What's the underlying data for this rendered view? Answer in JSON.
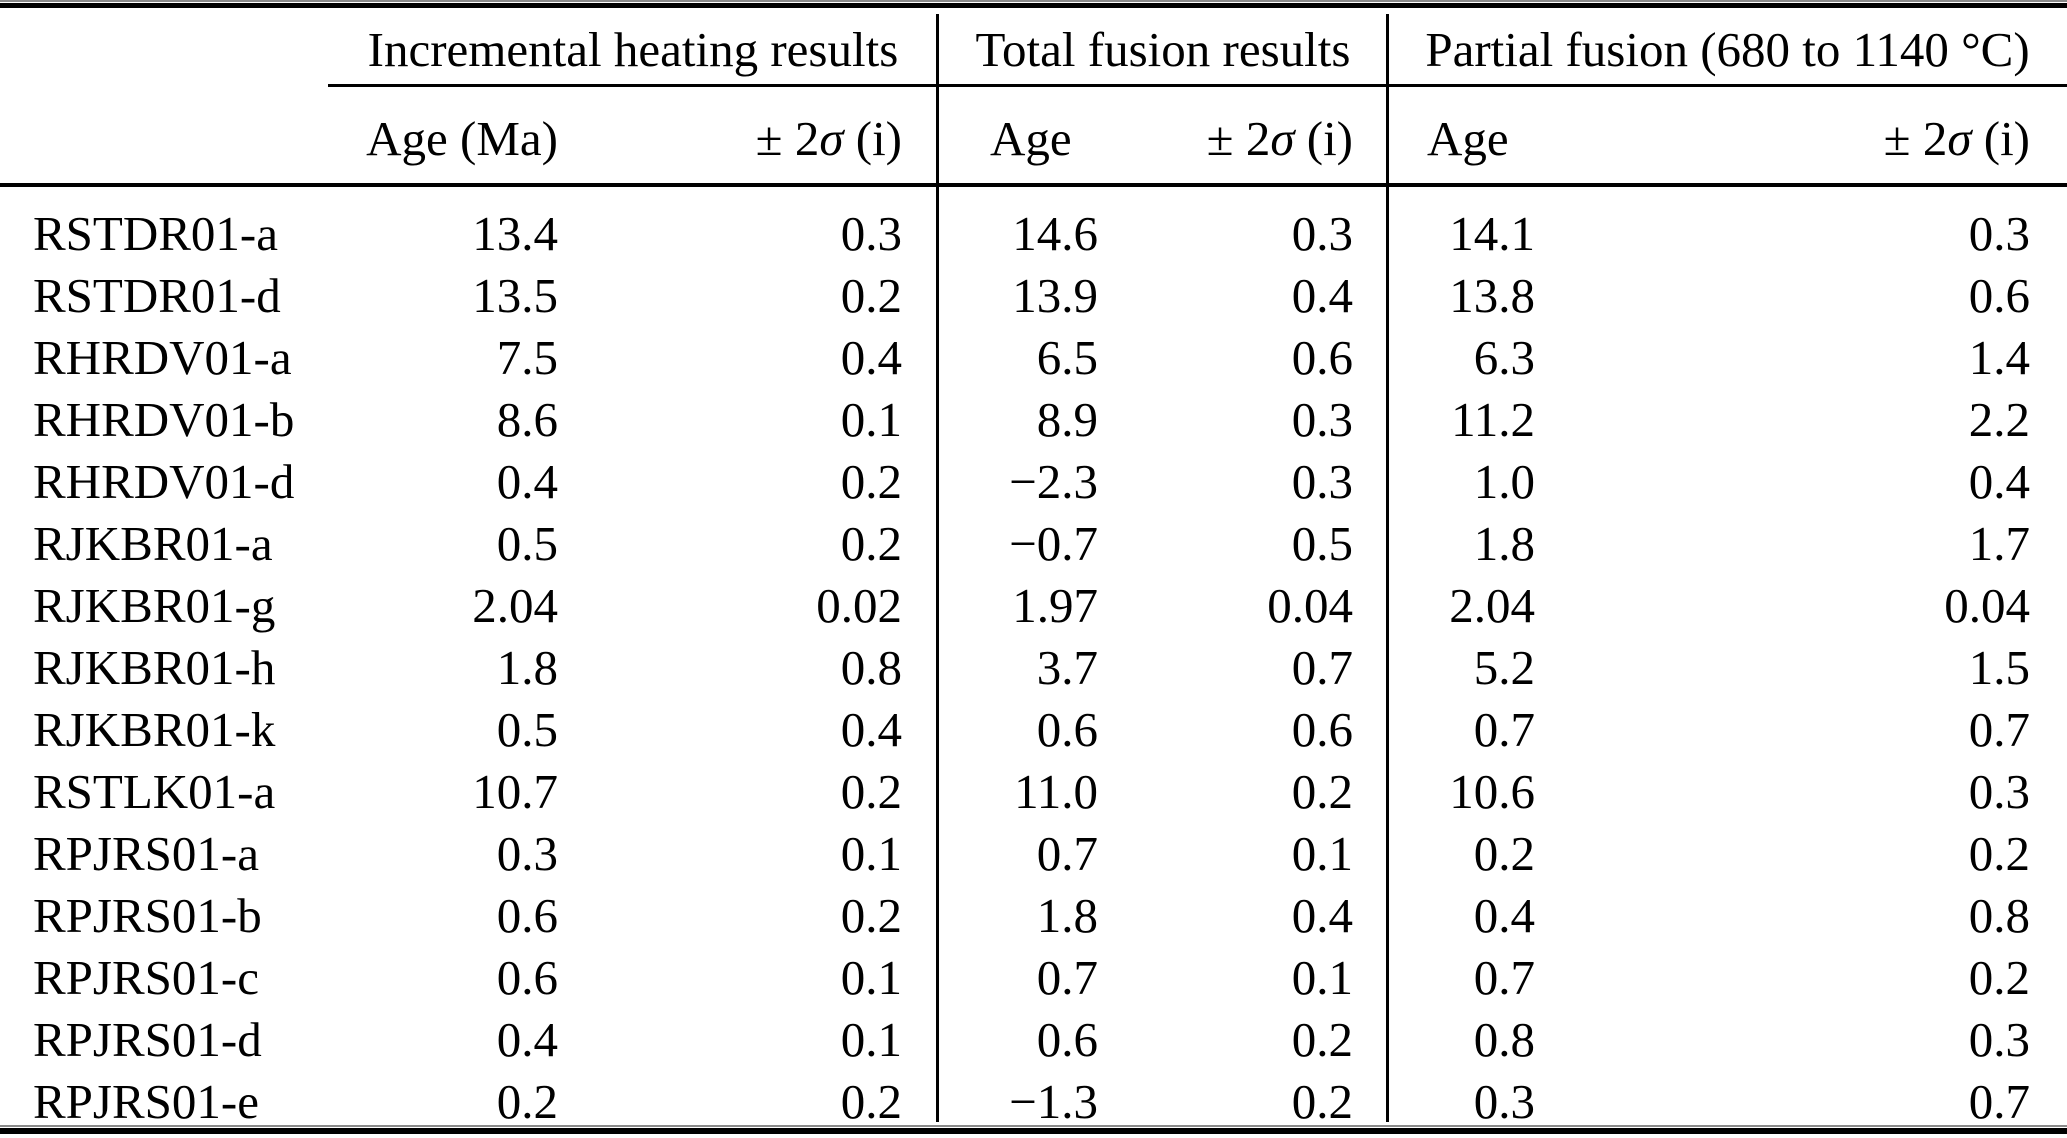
{
  "colors": {
    "text": "#000000",
    "background": "#ffffff",
    "rule": "#000000"
  },
  "header": {
    "group_labels": [
      "Incremental heating results",
      "Total fusion results",
      "Partial fusion (680 to 1140 °C)"
    ],
    "age_headers": [
      "Age (Ma)",
      "Age",
      "Age"
    ],
    "sigma_header": {
      "prefix": "± 2",
      "sigma": "σ",
      "suffix": " (i)"
    }
  },
  "rows": [
    {
      "sample": "RSTDR01-a",
      "values": [
        "13.4",
        "0.3",
        "14.6",
        "0.3",
        "14.1",
        "0.3"
      ]
    },
    {
      "sample": "RSTDR01-d",
      "values": [
        "13.5",
        "0.2",
        "13.9",
        "0.4",
        "13.8",
        "0.6"
      ]
    },
    {
      "sample": "RHRDV01-a",
      "values": [
        "7.5",
        "0.4",
        "6.5",
        "0.6",
        "6.3",
        "1.4"
      ]
    },
    {
      "sample": "RHRDV01-b",
      "values": [
        "8.6",
        "0.1",
        "8.9",
        "0.3",
        "11.2",
        "2.2"
      ]
    },
    {
      "sample": "RHRDV01-d",
      "values": [
        "0.4",
        "0.2",
        "−2.3",
        "0.3",
        "1.0",
        "0.4"
      ]
    },
    {
      "sample": "RJKBR01-a",
      "values": [
        "0.5",
        "0.2",
        "−0.7",
        "0.5",
        "1.8",
        "1.7"
      ]
    },
    {
      "sample": "RJKBR01-g",
      "values": [
        "2.04",
        "0.02",
        "1.97",
        "0.04",
        "2.04",
        "0.04"
      ]
    },
    {
      "sample": "RJKBR01-h",
      "values": [
        "1.8",
        "0.8",
        "3.7",
        "0.7",
        "5.2",
        "1.5"
      ]
    },
    {
      "sample": "RJKBR01-k",
      "values": [
        "0.5",
        "0.4",
        "0.6",
        "0.6",
        "0.7",
        "0.7"
      ]
    },
    {
      "sample": "RSTLK01-a",
      "values": [
        "10.7",
        "0.2",
        "11.0",
        "0.2",
        "10.6",
        "0.3"
      ]
    },
    {
      "sample": "RPJRS01-a",
      "values": [
        "0.3",
        "0.1",
        "0.7",
        "0.1",
        "0.2",
        "0.2"
      ]
    },
    {
      "sample": "RPJRS01-b",
      "values": [
        "0.6",
        "0.2",
        "1.8",
        "0.4",
        "0.4",
        "0.8"
      ]
    },
    {
      "sample": "RPJRS01-c",
      "values": [
        "0.6",
        "0.1",
        "0.7",
        "0.1",
        "0.7",
        "0.2"
      ]
    },
    {
      "sample": "RPJRS01-d",
      "values": [
        "0.4",
        "0.1",
        "0.6",
        "0.2",
        "0.8",
        "0.3"
      ]
    },
    {
      "sample": "RPJRS01-e",
      "values": [
        "0.2",
        "0.2",
        "−1.3",
        "0.2",
        "0.3",
        "0.7"
      ]
    }
  ]
}
